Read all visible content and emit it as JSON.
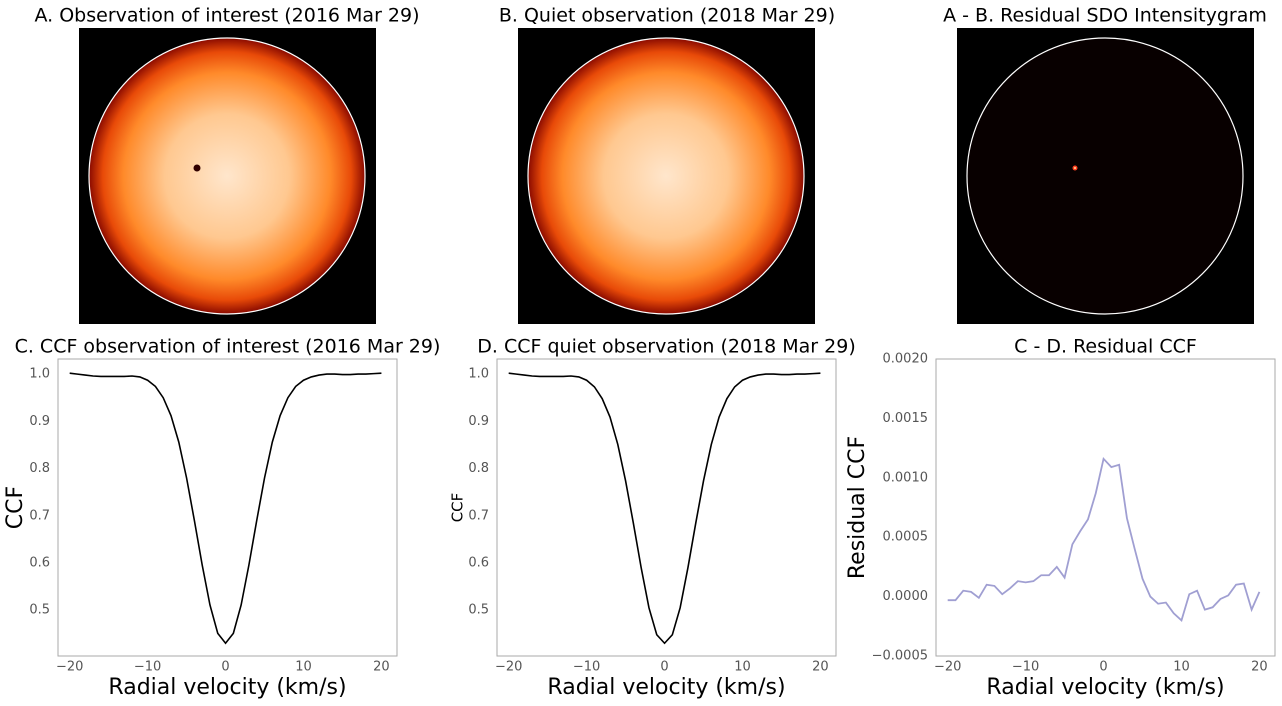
{
  "chart_data": [
    {
      "type": "image",
      "title": "A. Observation of interest (2016 Mar 29)"
    },
    {
      "type": "image",
      "title": "B. Quiet observation (2018 Mar 29)"
    },
    {
      "type": "image",
      "title": "A - B. Residual SDO Intensitygram"
    },
    {
      "type": "line",
      "title": "C. CCF observation of interest (2016 Mar 29)",
      "xlabel": "Radial velocity (km/s)",
      "ylabel": "CCF",
      "color": "#000000",
      "x": [
        -20,
        -19,
        -18,
        -17,
        -16,
        -15,
        -14,
        -13,
        -12,
        -11,
        -10,
        -9,
        -8,
        -7,
        -6,
        -5,
        -4,
        -3,
        -2,
        -1,
        0,
        1,
        2,
        3,
        4,
        5,
        6,
        7,
        8,
        9,
        10,
        11,
        12,
        13,
        14,
        15,
        16,
        17,
        18,
        19,
        20
      ],
      "values": [
        1.002,
        1.0,
        0.998,
        0.996,
        0.995,
        0.995,
        0.995,
        0.995,
        0.996,
        0.994,
        0.987,
        0.974,
        0.95,
        0.912,
        0.856,
        0.78,
        0.69,
        0.596,
        0.511,
        0.451,
        0.43,
        0.451,
        0.511,
        0.596,
        0.69,
        0.78,
        0.856,
        0.912,
        0.95,
        0.974,
        0.987,
        0.994,
        0.998,
        1.0,
        1.0,
        0.999,
        0.999,
        1.0,
        1.0,
        1.001,
        1.002
      ],
      "xlim": [
        -21.5,
        22
      ],
      "ylim": [
        0.403,
        1.032
      ],
      "xticks": [
        {
          "value": -20,
          "label": "−20"
        },
        {
          "value": -10,
          "label": "−10"
        },
        0,
        10,
        20
      ],
      "yticks": [
        0.5,
        0.6,
        0.7,
        0.8,
        0.9,
        {
          "value": 1,
          "label": "1.0"
        }
      ]
    },
    {
      "type": "line",
      "title": "D. CCF quiet observation (2018 Mar 29)",
      "xlabel": "Radial velocity (km/s)",
      "ylabel": "CCF",
      "color": "#000000",
      "x": [
        -20,
        -19,
        -18,
        -17,
        -16,
        -15,
        -14,
        -13,
        -12,
        -11,
        -10,
        -9,
        -8,
        -7,
        -6,
        -5,
        -4,
        -3,
        -2,
        -1,
        0,
        1,
        2,
        3,
        4,
        5,
        6,
        7,
        8,
        9,
        10,
        11,
        12,
        13,
        14,
        15,
        16,
        17,
        18,
        19,
        20
      ],
      "values": [
        1.002,
        1.0,
        0.998,
        0.996,
        0.995,
        0.995,
        0.995,
        0.995,
        0.996,
        0.994,
        0.987,
        0.973,
        0.948,
        0.909,
        0.851,
        0.774,
        0.684,
        0.59,
        0.505,
        0.448,
        0.43,
        0.448,
        0.505,
        0.59,
        0.684,
        0.774,
        0.851,
        0.909,
        0.948,
        0.973,
        0.987,
        0.994,
        0.998,
        1.0,
        1.0,
        0.999,
        0.999,
        1.0,
        1.0,
        1.001,
        1.002
      ],
      "xlim": [
        -21.5,
        22
      ],
      "ylim": [
        0.403,
        1.032
      ],
      "xticks": [
        {
          "value": -20,
          "label": "−20"
        },
        {
          "value": -10,
          "label": "−10"
        },
        0,
        10,
        20
      ],
      "yticks": [
        0.5,
        0.6,
        0.7,
        0.8,
        0.9,
        {
          "value": 1,
          "label": "1.0"
        }
      ]
    },
    {
      "type": "line",
      "title": "C - D. Residual CCF",
      "xlabel": "Radial velocity (km/s)",
      "ylabel": "Residual CCF",
      "color": "#a09fd2",
      "x": [
        -20,
        -19,
        -18,
        -17,
        -16,
        -15,
        -14,
        -13,
        -12,
        -11,
        -10,
        -9,
        -8,
        -7,
        -6,
        -5,
        -4,
        -3,
        -2,
        -1,
        0,
        1,
        2,
        3,
        4,
        5,
        6,
        7,
        8,
        9,
        10,
        11,
        12,
        13,
        14,
        15,
        16,
        17,
        18,
        19,
        20
      ],
      "values": [
        -3e-05,
        -3e-05,
        5e-05,
        4e-05,
        -1e-05,
        0.0001,
        9e-05,
        2e-05,
        7e-05,
        0.00013,
        0.00012,
        0.00013,
        0.00018,
        0.00018,
        0.00025,
        0.00016,
        0.00044,
        0.00055,
        0.00065,
        0.00087,
        0.00116,
        0.00109,
        0.00111,
        0.00066,
        0.0004,
        0.00015,
        0.0,
        -6e-05,
        -5e-05,
        -0.00014,
        -0.0002,
        2e-05,
        5e-05,
        -0.00011,
        -9e-05,
        -2e-05,
        1e-05,
        0.0001,
        0.00011,
        -0.00011,
        4e-05
      ],
      "xlim": [
        -21.5,
        22
      ],
      "ylim": [
        -0.0005,
        0.002
      ],
      "xticks": [
        {
          "value": -20,
          "label": "−20"
        },
        {
          "value": -10,
          "label": "−10"
        },
        0,
        10,
        20
      ],
      "yticks": [
        {
          "value": -0.0005,
          "label": "−0.0005"
        },
        {
          "value": 0,
          "label": "0.0000"
        },
        {
          "value": 0.0005,
          "label": "0.0005"
        },
        {
          "value": 0.001,
          "label": "0.0010"
        },
        {
          "value": 0.0015,
          "label": "0.0015"
        },
        {
          "value": 0.002,
          "label": "0.0020"
        }
      ]
    }
  ]
}
